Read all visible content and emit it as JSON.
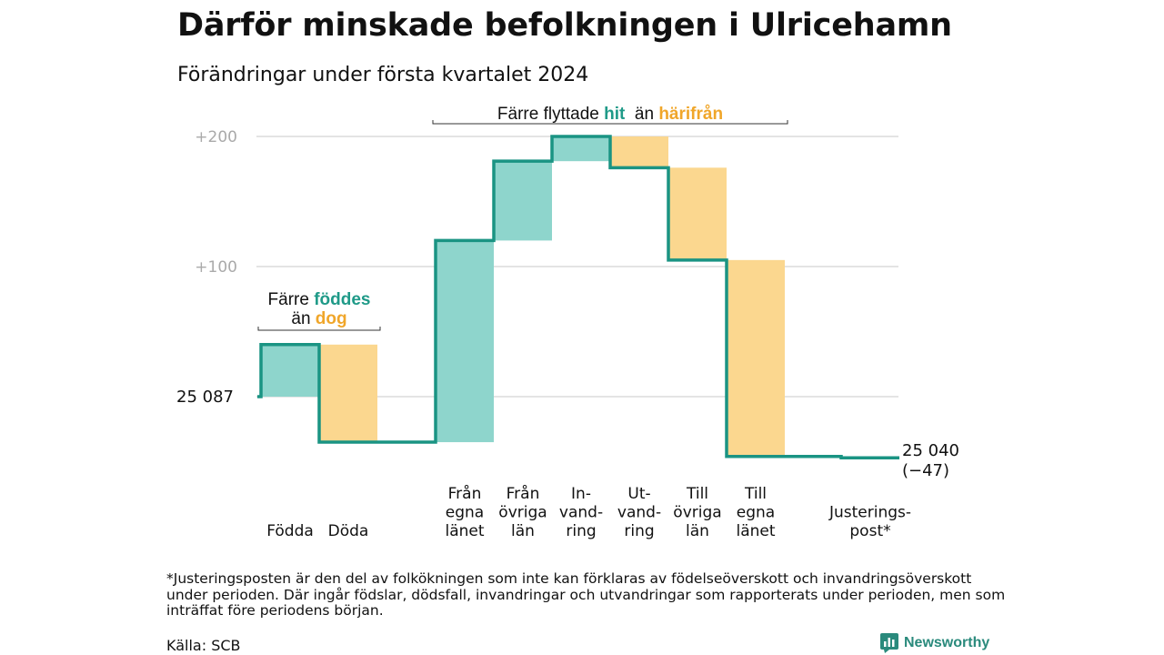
{
  "title": "Därför minskade befolkningen i Ulricehamn",
  "subtitle": "Förändringar under första kvartalet 2024",
  "footnote": "*Justeringsposten är den del av folkökningen som inte kan förklaras av födelseöverskott och invandringsöverskott under perioden. Där ingår födslar, dödsfall, invandringar och utvandringar som rapporterats under perioden, men som inträffat före periodens början.",
  "source": "Källa: SCB",
  "brand": "Newsworthy",
  "colors": {
    "teal": "#8ed5cc",
    "amber": "#fbd78f",
    "line": "#1a9483",
    "grid": "#dcdcdc",
    "tick": "#aaaaaa",
    "hl_teal": "#1f9a88",
    "hl_amber": "#f0a62a"
  },
  "chart_data": {
    "type": "waterfall",
    "start_value": 25087,
    "start_label": "25  087",
    "end_value": 25040,
    "end_label": "25 040",
    "end_change_label": "(−47)",
    "y_ticks": [
      {
        "value": 200,
        "label": "+200"
      },
      {
        "value": 100,
        "label": "+100"
      },
      {
        "value": 0,
        "label": ""
      }
    ],
    "ylim": [
      -60,
      205
    ],
    "categories": [
      {
        "label": [
          "Födda"
        ],
        "change": 40,
        "color": "teal"
      },
      {
        "label": [
          "Döda"
        ],
        "change": -75,
        "color": "amber"
      },
      {
        "label": [
          "Från",
          "egna",
          "länet"
        ],
        "change": 155,
        "color": "teal"
      },
      {
        "label": [
          "Från",
          "övriga",
          "län"
        ],
        "change": 61,
        "color": "teal"
      },
      {
        "label": [
          "In-",
          "vand-",
          "ring"
        ],
        "change": 19,
        "color": "teal"
      },
      {
        "label": [
          "Ut-",
          "vand-",
          "ring"
        ],
        "change": -24,
        "color": "amber"
      },
      {
        "label": [
          "Till",
          "övriga",
          "län"
        ],
        "change": -71,
        "color": "amber"
      },
      {
        "label": [
          "Till",
          "egna",
          "länet"
        ],
        "change": -151,
        "color": "amber"
      },
      {
        "label": [
          "Justerings-",
          "post*"
        ],
        "change": -1,
        "color": "none"
      }
    ],
    "annotations": [
      {
        "lines": [
          [
            {
              "text": "Färre ",
              "hl": ""
            },
            {
              "text": "föddes",
              "hl": "teal"
            }
          ],
          [
            {
              "text": "än ",
              "hl": ""
            },
            {
              "text": "dog",
              "hl": "amber"
            }
          ]
        ],
        "from": 0,
        "to": 1
      },
      {
        "lines": [
          [
            {
              "text": "Färre flyttade ",
              "hl": ""
            },
            {
              "text": "hit",
              "hl": "teal"
            },
            {
              "text": "  än ",
              "hl": ""
            },
            {
              "text": "härifrån",
              "hl": "amber"
            }
          ]
        ],
        "from": 2,
        "to": 7
      }
    ]
  }
}
